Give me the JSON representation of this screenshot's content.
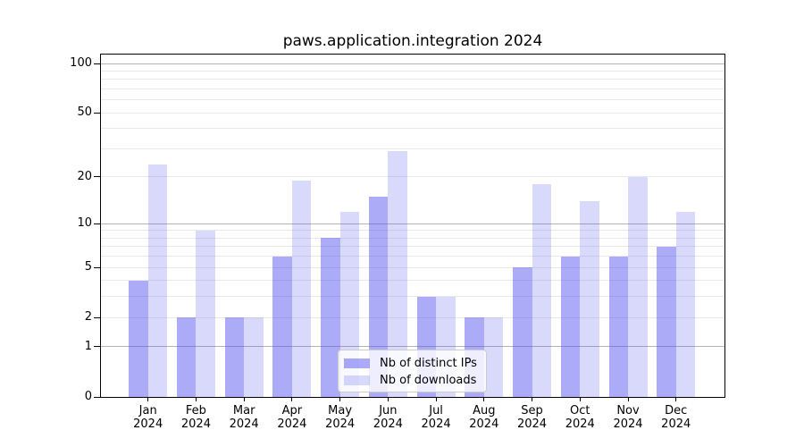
{
  "chart_data": {
    "type": "bar",
    "title": "paws.application.integration 2024",
    "categories": [
      "Jan 2024",
      "Feb 2024",
      "Mar 2024",
      "Apr 2024",
      "May 2024",
      "Jun 2024",
      "Jul 2024",
      "Aug 2024",
      "Sep 2024",
      "Oct 2024",
      "Nov 2024",
      "Dec 2024"
    ],
    "x_tick_months": [
      "Jan",
      "Feb",
      "Mar",
      "Apr",
      "May",
      "Jun",
      "Jul",
      "Aug",
      "Sep",
      "Oct",
      "Nov",
      "Dec"
    ],
    "x_tick_year": "2024",
    "series": [
      {
        "name": "Nb of distinct IPs",
        "color": "rgba(80,80,240,0.48)",
        "values": [
          4,
          2,
          2,
          6,
          8,
          15,
          3,
          2,
          5,
          6,
          6,
          7
        ]
      },
      {
        "name": "Nb of downloads",
        "color": "rgba(80,80,240,0.22)",
        "values": [
          24,
          9,
          2,
          19,
          12,
          29,
          3,
          2,
          18,
          14,
          20,
          12
        ]
      }
    ],
    "yscale": "symlog (pixel height proportional to ln(1+value))",
    "ylim": [
      0,
      113
    ],
    "y_tick_values": [
      0,
      1,
      2,
      5,
      10,
      20,
      50,
      100
    ],
    "y_tick_labels": [
      "0",
      "1",
      "2",
      "5",
      "10",
      "20",
      "50",
      "100"
    ],
    "major_gridline_values": [
      1,
      10,
      100
    ],
    "minor_gridline_values": [
      2,
      3,
      4,
      5,
      6,
      7,
      8,
      9,
      20,
      30,
      40,
      50,
      60,
      70,
      80,
      90
    ],
    "grid": true,
    "legend_position": "lower center",
    "colors": {
      "bar_distinct_ips": "rgba(80,80,240,0.48)",
      "bar_downloads": "rgba(80,80,240,0.22)",
      "major_grid": "#b4b4b4",
      "minor_grid": "#e9e9e9",
      "axis": "#000000",
      "legend_border": "#cccccc",
      "legend_background": "rgba(255,255,255,0.8)",
      "background": "#ffffff"
    }
  }
}
